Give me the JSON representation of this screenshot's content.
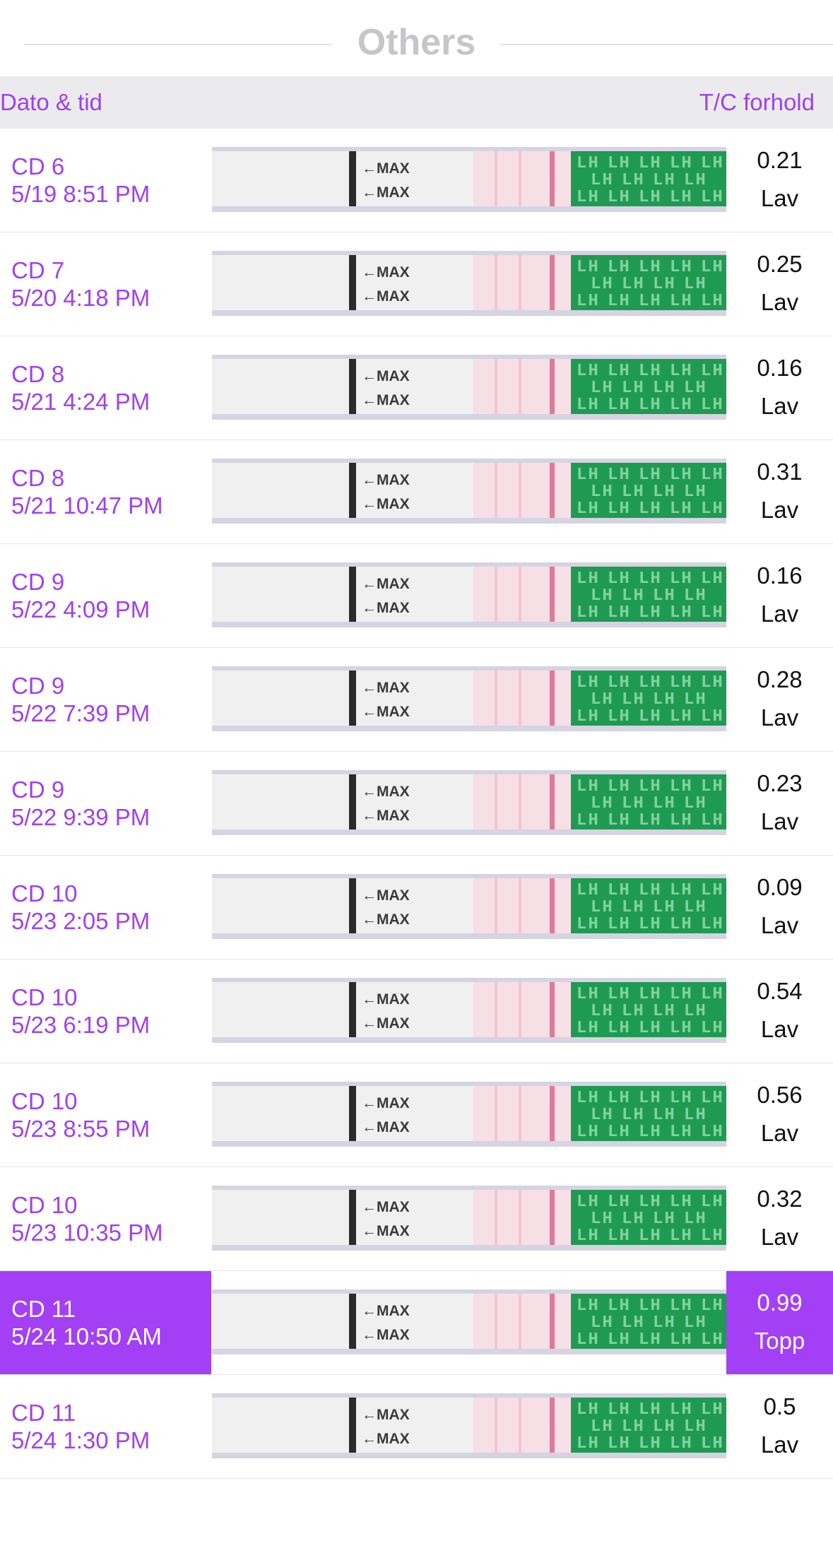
{
  "section": {
    "title": "Others"
  },
  "header": {
    "left": "Dato & tid",
    "right": "T/C forhold"
  },
  "strip_labels": {
    "max": "←MAX",
    "lh": "LH"
  },
  "colors": {
    "accent": "#a040ef",
    "selected_bg": "#a33ff5",
    "header_bg": "#ebebed"
  },
  "rows": [
    {
      "cd": "CD 6",
      "datetime": "5/19 8:51 PM",
      "ratio": "0.21",
      "level": "Lav",
      "selected": false
    },
    {
      "cd": "CD 7",
      "datetime": "5/20 4:18 PM",
      "ratio": "0.25",
      "level": "Lav",
      "selected": false
    },
    {
      "cd": "CD 8",
      "datetime": "5/21 4:24 PM",
      "ratio": "0.16",
      "level": "Lav",
      "selected": false
    },
    {
      "cd": "CD 8",
      "datetime": "5/21 10:47 PM",
      "ratio": "0.31",
      "level": "Lav",
      "selected": false
    },
    {
      "cd": "CD 9",
      "datetime": "5/22 4:09 PM",
      "ratio": "0.16",
      "level": "Lav",
      "selected": false
    },
    {
      "cd": "CD 9",
      "datetime": "5/22 7:39 PM",
      "ratio": "0.28",
      "level": "Lav",
      "selected": false
    },
    {
      "cd": "CD 9",
      "datetime": "5/22 9:39 PM",
      "ratio": "0.23",
      "level": "Lav",
      "selected": false
    },
    {
      "cd": "CD 10",
      "datetime": "5/23 2:05 PM",
      "ratio": "0.09",
      "level": "Lav",
      "selected": false
    },
    {
      "cd": "CD 10",
      "datetime": "5/23 6:19 PM",
      "ratio": "0.54",
      "level": "Lav",
      "selected": false
    },
    {
      "cd": "CD 10",
      "datetime": "5/23 8:55 PM",
      "ratio": "0.56",
      "level": "Lav",
      "selected": false
    },
    {
      "cd": "CD 10",
      "datetime": "5/23 10:35 PM",
      "ratio": "0.32",
      "level": "Lav",
      "selected": false
    },
    {
      "cd": "CD 11",
      "datetime": "5/24 10:50 AM",
      "ratio": "0.99",
      "level": "Topp",
      "selected": true
    },
    {
      "cd": "CD 11",
      "datetime": "5/24 1:30 PM",
      "ratio": "0.5",
      "level": "Lav",
      "selected": false
    }
  ]
}
